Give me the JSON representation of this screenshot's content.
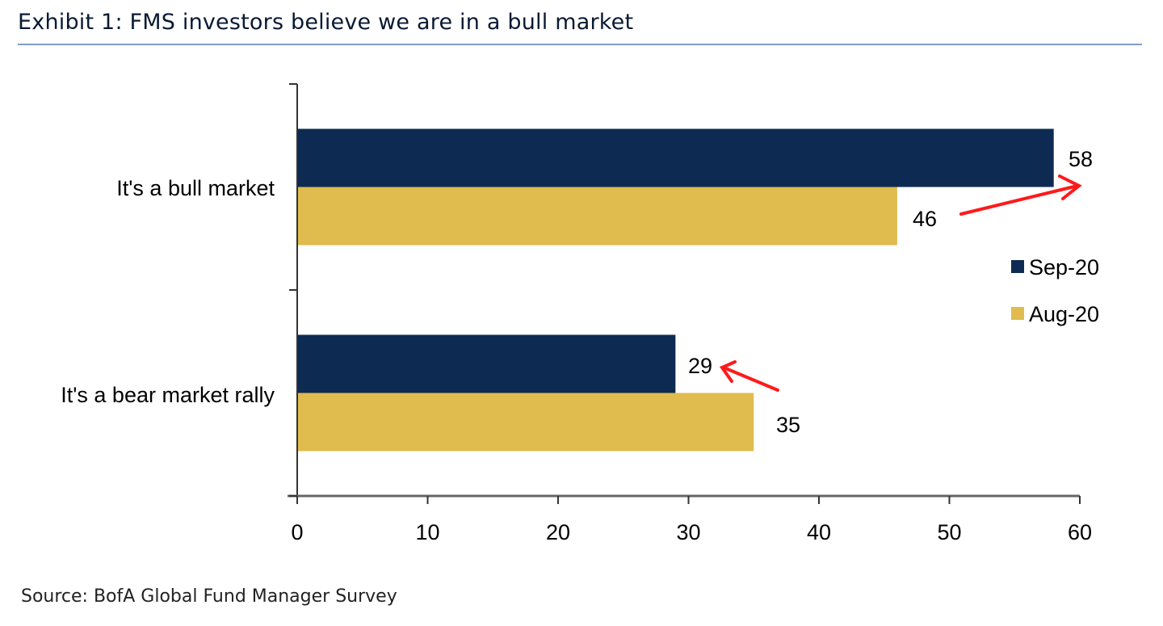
{
  "title": "Exhibit 1: FMS investors believe we are in a bull market",
  "source": "Source: BofA Global Fund Manager Survey",
  "chart_data": {
    "type": "bar",
    "orientation": "horizontal",
    "categories": [
      "It's a bull market",
      "It's a bear market rally"
    ],
    "series": [
      {
        "name": "Sep-20",
        "color": "#0d2b52",
        "values": [
          58,
          29
        ]
      },
      {
        "name": "Aug-20",
        "color": "#e0bb4e",
        "values": [
          46,
          35
        ]
      }
    ],
    "xlim": [
      0,
      60
    ],
    "xticks": [
      "0",
      "10",
      "20",
      "30",
      "40",
      "50",
      "60"
    ],
    "data_labels": [
      "58",
      "29",
      "46",
      "35"
    ],
    "legend_position": "right",
    "grid": false,
    "annotations": [
      "red arrow pointing to 58 (increase from 46)",
      "red arrow pointing to 29 (decrease from 35)"
    ],
    "arrow_color": "#ff1a1a"
  }
}
